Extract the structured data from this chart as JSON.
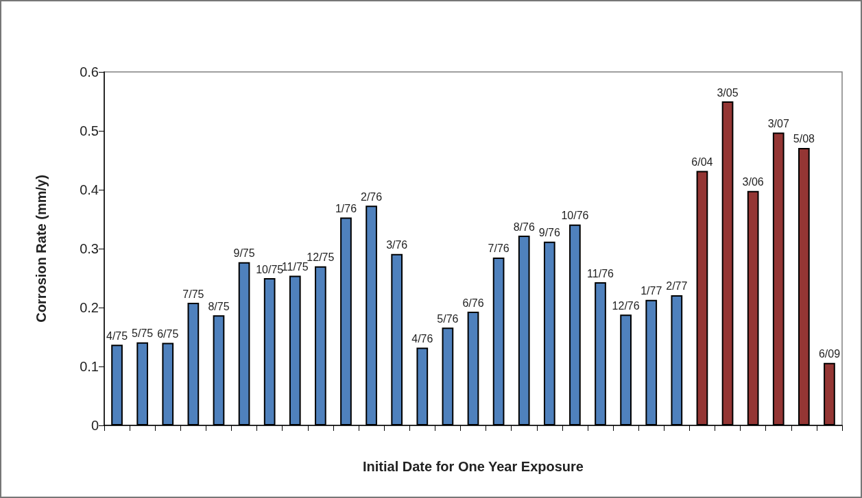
{
  "chart_data": {
    "type": "bar",
    "xlabel": "Initial Date for One Year Exposure",
    "ylabel": "Corrosion Rate (mm/y)",
    "categories": [
      "4/75",
      "5/75",
      "6/75",
      "7/75",
      "8/75",
      "9/75",
      "10/75",
      "11/75",
      "12/75",
      "1/76",
      "2/76",
      "3/76",
      "4/76",
      "5/76",
      "6/76",
      "7/76",
      "8/76",
      "9/76",
      "10/76",
      "11/76",
      "12/76",
      "1/77",
      "2/77",
      "6/04",
      "3/05",
      "3/06",
      "3/07",
      "5/08",
      "6/09"
    ],
    "values": [
      0.137,
      0.141,
      0.14,
      0.208,
      0.187,
      0.277,
      0.25,
      0.254,
      0.27,
      0.353,
      0.373,
      0.291,
      0.132,
      0.166,
      0.193,
      0.285,
      0.322,
      0.312,
      0.341,
      0.243,
      0.188,
      0.213,
      0.221,
      0.432,
      0.55,
      0.398,
      0.497,
      0.471,
      0.106
    ],
    "colors": [
      "#4f81bd",
      "#4f81bd",
      "#4f81bd",
      "#4f81bd",
      "#4f81bd",
      "#4f81bd",
      "#4f81bd",
      "#4f81bd",
      "#4f81bd",
      "#4f81bd",
      "#4f81bd",
      "#4f81bd",
      "#4f81bd",
      "#4f81bd",
      "#4f81bd",
      "#4f81bd",
      "#4f81bd",
      "#4f81bd",
      "#4f81bd",
      "#4f81bd",
      "#4f81bd",
      "#4f81bd",
      "#4f81bd",
      "#943634",
      "#943634",
      "#943634",
      "#943634",
      "#943634",
      "#943634"
    ],
    "ylim": [
      0,
      0.6
    ],
    "yticks": [
      0,
      0.1,
      0.2,
      0.3,
      0.4,
      0.5,
      0.6
    ],
    "grid": false,
    "tick_labels": "y"
  }
}
